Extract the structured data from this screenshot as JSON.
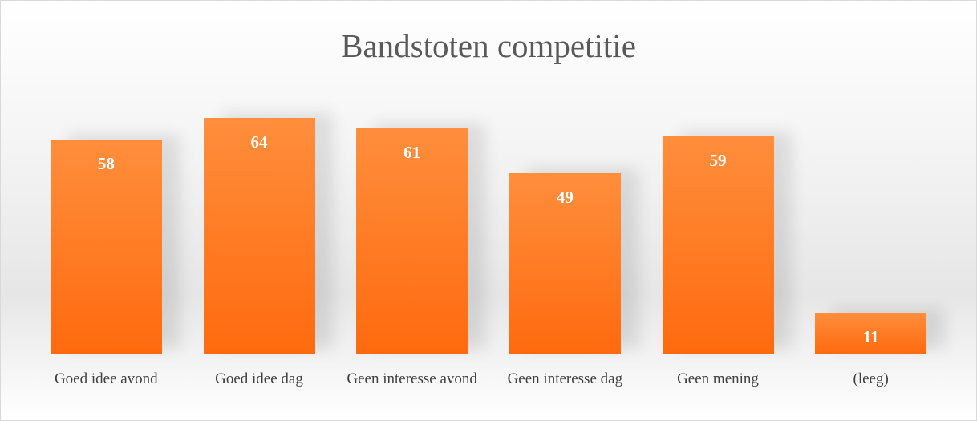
{
  "chart_data": {
    "type": "bar",
    "title": "Bandstoten competitie",
    "categories": [
      "Goed idee avond",
      "Goed idee dag",
      "Geen interesse avond",
      "Geen interesse dag",
      "Geen mening",
      "(leeg)"
    ],
    "values": [
      58,
      64,
      61,
      49,
      59,
      11
    ],
    "color": "#ff7a22"
  }
}
